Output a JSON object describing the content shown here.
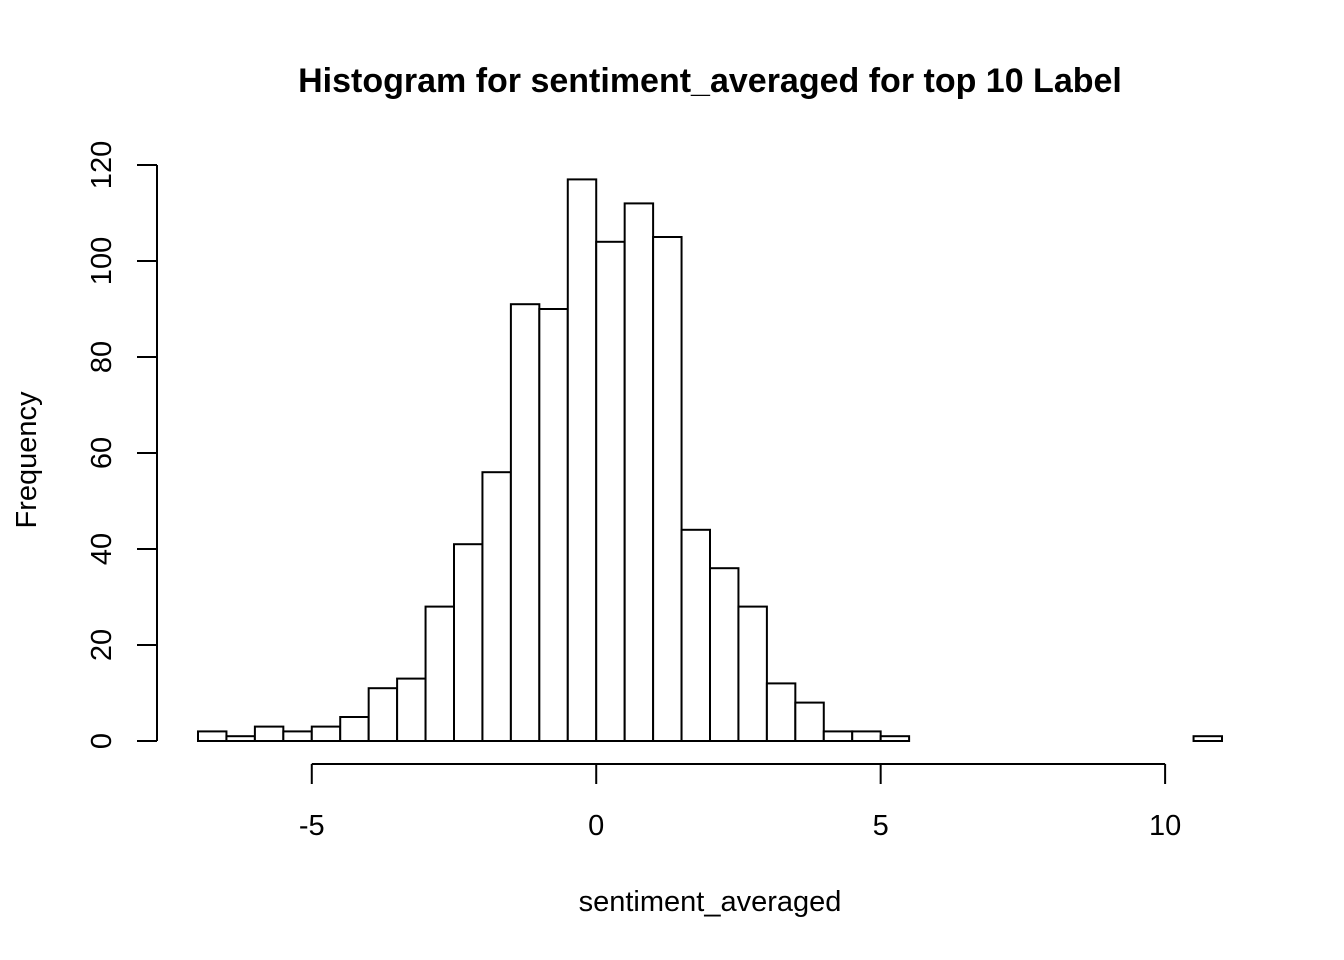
{
  "chart_data": {
    "type": "bar",
    "title": "Histogram for sentiment_averaged for top 10 Label",
    "xlabel": "sentiment_averaged",
    "ylabel": "Frequency",
    "xlim": [
      -7,
      11
    ],
    "ylim": [
      0,
      120
    ],
    "x_ticks": [
      -5,
      0,
      5,
      10
    ],
    "y_ticks": [
      0,
      20,
      40,
      60,
      80,
      100,
      120
    ],
    "bin_width": 0.5,
    "bins_start": -7,
    "values": [
      2,
      1,
      3,
      2,
      3,
      5,
      11,
      13,
      28,
      41,
      56,
      91,
      90,
      117,
      104,
      112,
      105,
      44,
      36,
      28,
      12,
      8,
      2,
      2,
      1,
      0,
      0,
      0,
      0,
      0,
      0,
      0,
      0,
      0,
      0,
      1
    ],
    "grid": false,
    "bar_fill": "#ffffff",
    "bar_stroke": "#000000"
  }
}
